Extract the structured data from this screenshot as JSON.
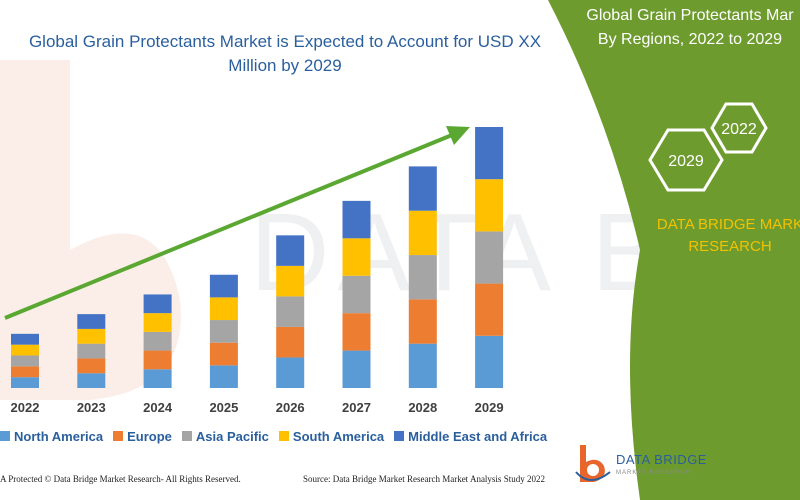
{
  "title": "Global Grain Protectants Market is Expected to Account for USD XX Million by 2029",
  "right_panel": {
    "title_line1": "Global Grain Protectants Mar",
    "title_line2": "By Regions, 2022 to 2029",
    "hex_labels": [
      "2022",
      "2029"
    ],
    "brand_line1": "DATA BRIDGE MARK",
    "brand_line2": "RESEARCH",
    "panel_color": "#6e9b2e",
    "brand_color": "#f2c200"
  },
  "footer": {
    "left": "A Protected © Data Bridge Market Research- All Rights Reserved.",
    "right": "Source: Data Bridge Market Research Market Analysis Study 2022",
    "logo_text": "DATA BRIDGE",
    "logo_sub": "MARKET RESEARCH"
  },
  "chart_data": {
    "type": "bar",
    "stacked": true,
    "categories": [
      "2022",
      "2023",
      "2024",
      "2025",
      "2026",
      "2027",
      "2028",
      "2029"
    ],
    "series": [
      {
        "name": "North America",
        "color": "#5b9bd5",
        "values": [
          11,
          15,
          19,
          23,
          31,
          38,
          45,
          53
        ]
      },
      {
        "name": "Europe",
        "color": "#ed7d31",
        "values": [
          11,
          15,
          19,
          23,
          31,
          38,
          45,
          53
        ]
      },
      {
        "name": "Asia Pacific",
        "color": "#a5a5a5",
        "values": [
          11,
          15,
          19,
          23,
          31,
          38,
          45,
          53
        ]
      },
      {
        "name": "South America",
        "color": "#ffc000",
        "values": [
          11,
          15,
          19,
          23,
          31,
          38,
          45,
          53
        ]
      },
      {
        "name": "Middle East and Africa",
        "color": "#4472c4",
        "values": [
          11,
          15,
          19,
          23,
          31,
          38,
          45,
          53
        ]
      }
    ],
    "ylim": [
      0,
      265
    ],
    "legend_position": "bottom",
    "grid": false,
    "trend_arrow": true
  }
}
